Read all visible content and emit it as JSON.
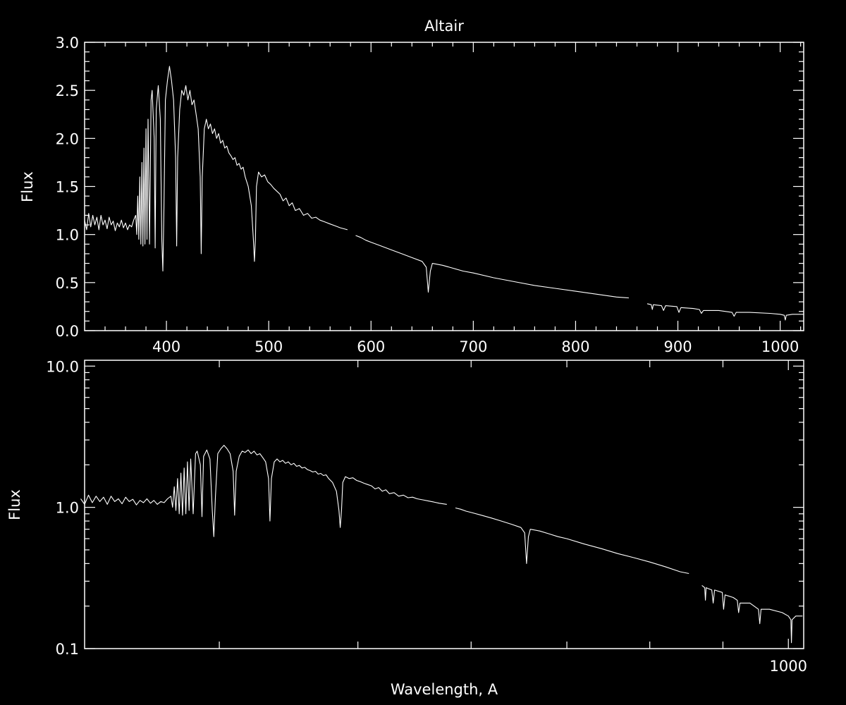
{
  "colors": {
    "background": "#000000",
    "foreground": "#ffffff"
  },
  "chart_data": [
    {
      "type": "line",
      "title": "Altair",
      "xlabel": "",
      "ylabel": "Flux",
      "xlim": [
        320,
        1023
      ],
      "ylim": [
        0,
        3.0
      ],
      "xscale": "linear",
      "yscale": "linear",
      "xticks": [
        400,
        500,
        600,
        700,
        800,
        900,
        1000
      ],
      "xtick_labels": [
        "400",
        "500",
        "600",
        "700",
        "800",
        "900",
        "1000"
      ],
      "yticks": [
        0.0,
        0.5,
        1.0,
        1.5,
        2.0,
        2.5,
        3.0
      ],
      "ytick_labels": [
        "0.0",
        "0.5",
        "1.0",
        "1.5",
        "2.0",
        "2.5",
        "3.0"
      ],
      "grid": false,
      "series_ref": "spectrum"
    },
    {
      "type": "line",
      "title": "",
      "xlabel": "Wavelength, A",
      "ylabel": "Flux",
      "xlim": [
        322,
        1025
      ],
      "ylim": [
        0.1,
        11
      ],
      "xscale": "log",
      "yscale": "log",
      "xticks": [
        1000
      ],
      "xtick_labels": [
        "1000"
      ],
      "yticks": [
        0.1,
        1.0,
        10.0
      ],
      "ytick_labels": [
        "0.1",
        "1.0",
        "10.0"
      ],
      "grid": false,
      "series_ref": "spectrum"
    }
  ],
  "spectrum": [
    [
      [
        320,
        1.15
      ],
      [
        322,
        1.05
      ],
      [
        324,
        1.22
      ],
      [
        326,
        1.08
      ],
      [
        328,
        1.2
      ],
      [
        330,
        1.1
      ],
      [
        332,
        1.18
      ],
      [
        334,
        1.05
      ],
      [
        336,
        1.2
      ],
      [
        338,
        1.1
      ],
      [
        340,
        1.15
      ],
      [
        342,
        1.06
      ],
      [
        344,
        1.18
      ],
      [
        346,
        1.1
      ],
      [
        348,
        1.14
      ],
      [
        350,
        1.04
      ],
      [
        352,
        1.12
      ],
      [
        354,
        1.08
      ],
      [
        356,
        1.15
      ],
      [
        358,
        1.07
      ],
      [
        360,
        1.12
      ],
      [
        362,
        1.05
      ],
      [
        364,
        1.1
      ],
      [
        366,
        1.08
      ],
      [
        368,
        1.15
      ],
      [
        370,
        1.2
      ],
      [
        371,
        1.0
      ],
      [
        372,
        1.4
      ],
      [
        373,
        0.95
      ],
      [
        374,
        1.6
      ],
      [
        375,
        0.9
      ],
      [
        376,
        1.75
      ],
      [
        377,
        0.88
      ],
      [
        378,
        1.9
      ],
      [
        379,
        0.9
      ],
      [
        380,
        2.1
      ],
      [
        381,
        0.95
      ],
      [
        382,
        2.2
      ],
      [
        383.5,
        0.9
      ],
      [
        385,
        2.4
      ],
      [
        386,
        2.5
      ],
      [
        388,
        2.0
      ],
      [
        389,
        0.86
      ],
      [
        390,
        2.3
      ],
      [
        392,
        2.55
      ],
      [
        394,
        2.2
      ],
      [
        395.5,
        0.95
      ],
      [
        396.5,
        0.62
      ],
      [
        397.5,
        1.2
      ],
      [
        399,
        2.4
      ],
      [
        401,
        2.6
      ],
      [
        403,
        2.75
      ],
      [
        405,
        2.6
      ],
      [
        407,
        2.4
      ],
      [
        409,
        1.8
      ],
      [
        410,
        0.88
      ],
      [
        411,
        1.8
      ],
      [
        413,
        2.3
      ],
      [
        415,
        2.5
      ],
      [
        417,
        2.45
      ],
      [
        419,
        2.55
      ],
      [
        421,
        2.4
      ],
      [
        423,
        2.5
      ],
      [
        425,
        2.35
      ],
      [
        427,
        2.4
      ],
      [
        429,
        2.25
      ],
      [
        431,
        2.1
      ],
      [
        433,
        1.6
      ],
      [
        434,
        0.8
      ],
      [
        435,
        1.6
      ],
      [
        437,
        2.1
      ],
      [
        439,
        2.2
      ],
      [
        441,
        2.1
      ],
      [
        443,
        2.15
      ],
      [
        445,
        2.05
      ],
      [
        447,
        2.1
      ],
      [
        449,
        2.0
      ],
      [
        451,
        2.05
      ],
      [
        453,
        1.95
      ],
      [
        455,
        1.98
      ],
      [
        457,
        1.9
      ],
      [
        459,
        1.92
      ],
      [
        461,
        1.85
      ],
      [
        463,
        1.82
      ],
      [
        465,
        1.78
      ],
      [
        467,
        1.8
      ],
      [
        469,
        1.72
      ],
      [
        471,
        1.74
      ],
      [
        473,
        1.68
      ],
      [
        475,
        1.7
      ],
      [
        477,
        1.6
      ],
      [
        480,
        1.5
      ],
      [
        483,
        1.3
      ],
      [
        485,
        0.95
      ],
      [
        486,
        0.72
      ],
      [
        487,
        0.95
      ],
      [
        488,
        1.5
      ],
      [
        490,
        1.65
      ],
      [
        493,
        1.6
      ],
      [
        496,
        1.62
      ],
      [
        499,
        1.55
      ],
      [
        502,
        1.52
      ],
      [
        505,
        1.48
      ],
      [
        508,
        1.45
      ],
      [
        511,
        1.42
      ],
      [
        514,
        1.35
      ],
      [
        517,
        1.38
      ],
      [
        520,
        1.3
      ],
      [
        523,
        1.33
      ],
      [
        526,
        1.25
      ],
      [
        530,
        1.27
      ],
      [
        534,
        1.2
      ],
      [
        538,
        1.22
      ],
      [
        542,
        1.17
      ],
      [
        546,
        1.18
      ],
      [
        550,
        1.15
      ],
      [
        555,
        1.13
      ],
      [
        560,
        1.11
      ],
      [
        565,
        1.09
      ],
      [
        570,
        1.07
      ],
      [
        577,
        1.05
      ]
    ],
    [
      [
        585,
        0.99
      ],
      [
        590,
        0.97
      ],
      [
        595,
        0.94
      ],
      [
        600,
        0.92
      ],
      [
        610,
        0.88
      ],
      [
        620,
        0.84
      ],
      [
        630,
        0.8
      ],
      [
        640,
        0.76
      ],
      [
        650,
        0.72
      ],
      [
        654,
        0.66
      ],
      [
        656,
        0.4
      ],
      [
        658,
        0.62
      ],
      [
        660,
        0.7
      ],
      [
        670,
        0.68
      ],
      [
        680,
        0.65
      ],
      [
        690,
        0.62
      ],
      [
        700,
        0.6
      ],
      [
        720,
        0.55
      ],
      [
        740,
        0.51
      ],
      [
        760,
        0.47
      ],
      [
        780,
        0.44
      ],
      [
        800,
        0.41
      ],
      [
        820,
        0.38
      ],
      [
        840,
        0.35
      ],
      [
        852,
        0.34
      ]
    ],
    [
      [
        870,
        0.28
      ],
      [
        874,
        0.27
      ],
      [
        875,
        0.22
      ],
      [
        876,
        0.27
      ],
      [
        884,
        0.26
      ],
      [
        886,
        0.21
      ],
      [
        888,
        0.26
      ],
      [
        899,
        0.25
      ],
      [
        901,
        0.19
      ],
      [
        903,
        0.24
      ],
      [
        915,
        0.23
      ],
      [
        921,
        0.22
      ],
      [
        923,
        0.18
      ],
      [
        925,
        0.21
      ],
      [
        940,
        0.21
      ],
      [
        953,
        0.19
      ],
      [
        955,
        0.15
      ],
      [
        957,
        0.19
      ],
      [
        970,
        0.19
      ],
      [
        990,
        0.18
      ],
      [
        1000,
        0.17
      ],
      [
        1004,
        0.16
      ],
      [
        1005,
        0.11
      ],
      [
        1006,
        0.16
      ],
      [
        1012,
        0.17
      ],
      [
        1023,
        0.17
      ]
    ]
  ]
}
